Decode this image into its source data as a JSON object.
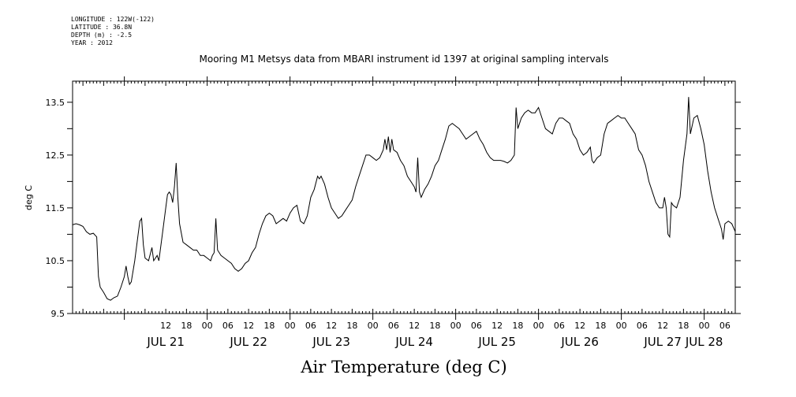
{
  "header": {
    "meta_lines": [
      "LONGITUDE : 122W(-122)",
      "LATITUDE : 36.8N",
      "DEPTH (m) : -2.5",
      "YEAR : 2012"
    ]
  },
  "chart_data": {
    "type": "line",
    "title": "Mooring M1 Metsys data from MBARI instrument id 1397 at original sampling intervals",
    "xlabel": "Air Temperature (deg C)",
    "ylabel": "deg C",
    "ylim": [
      9.5,
      13.9
    ],
    "yticks": [
      9.5,
      10.5,
      11.5,
      12.5,
      13.5
    ],
    "y_tick_labels": [
      "9.5",
      "10.5",
      "11.5",
      "12.5",
      "13.5"
    ],
    "x_unit": "hours since JUL 21 00:00 (2012)",
    "xlim": [
      -15,
      177
    ],
    "hour_tick_labels": [
      {
        "h": 12,
        "t": "12"
      },
      {
        "h": 18,
        "t": "18"
      },
      {
        "h": 24,
        "t": "00"
      },
      {
        "h": 30,
        "t": "06"
      },
      {
        "h": 36,
        "t": "12"
      },
      {
        "h": 42,
        "t": "18"
      },
      {
        "h": 48,
        "t": "00"
      },
      {
        "h": 54,
        "t": "06"
      },
      {
        "h": 60,
        "t": "12"
      },
      {
        "h": 66,
        "t": "18"
      },
      {
        "h": 72,
        "t": "00"
      },
      {
        "h": 78,
        "t": "06"
      },
      {
        "h": 84,
        "t": "12"
      },
      {
        "h": 90,
        "t": "18"
      },
      {
        "h": 96,
        "t": "00"
      },
      {
        "h": 102,
        "t": "06"
      },
      {
        "h": 108,
        "t": "12"
      },
      {
        "h": 114,
        "t": "18"
      },
      {
        "h": 120,
        "t": "00"
      },
      {
        "h": 126,
        "t": "06"
      },
      {
        "h": 132,
        "t": "12"
      },
      {
        "h": 138,
        "t": "18"
      },
      {
        "h": 144,
        "t": "00"
      },
      {
        "h": 150,
        "t": "06"
      },
      {
        "h": 156,
        "t": "12"
      },
      {
        "h": 162,
        "t": "18"
      },
      {
        "h": 168,
        "t": "00"
      },
      {
        "h": 174,
        "t": "06"
      }
    ],
    "day_labels": [
      {
        "h": 12,
        "t": "JUL 21"
      },
      {
        "h": 36,
        "t": "JUL 22"
      },
      {
        "h": 60,
        "t": "JUL 23"
      },
      {
        "h": 84,
        "t": "JUL 24"
      },
      {
        "h": 108,
        "t": "JUL 25"
      },
      {
        "h": 132,
        "t": "JUL 26"
      },
      {
        "h": 156,
        "t": "JUL 27"
      },
      {
        "h": 168,
        "t": "JUL 28"
      }
    ],
    "series": [
      {
        "line_color": "#000000",
        "points": [
          [
            -15.0,
            11.18
          ],
          [
            -14.0,
            11.2
          ],
          [
            -13.0,
            11.18
          ],
          [
            -12.0,
            11.15
          ],
          [
            -11.0,
            11.05
          ],
          [
            -10.0,
            11.0
          ],
          [
            -9.0,
            11.02
          ],
          [
            -8.0,
            10.95
          ],
          [
            -7.5,
            10.2
          ],
          [
            -7.0,
            10.0
          ],
          [
            -6.0,
            9.9
          ],
          [
            -5.0,
            9.78
          ],
          [
            -4.0,
            9.75
          ],
          [
            -3.0,
            9.8
          ],
          [
            -2.0,
            9.83
          ],
          [
            -1.0,
            10.0
          ],
          [
            0.0,
            10.2
          ],
          [
            0.5,
            10.4
          ],
          [
            1.0,
            10.2
          ],
          [
            1.5,
            10.05
          ],
          [
            2.0,
            10.1
          ],
          [
            3.0,
            10.5
          ],
          [
            4.0,
            11.0
          ],
          [
            4.5,
            11.25
          ],
          [
            5.0,
            11.3
          ],
          [
            5.5,
            10.8
          ],
          [
            6.0,
            10.55
          ],
          [
            7.0,
            10.5
          ],
          [
            8.0,
            10.75
          ],
          [
            8.5,
            10.5
          ],
          [
            9.5,
            10.6
          ],
          [
            10.0,
            10.5
          ],
          [
            11.0,
            11.0
          ],
          [
            12.0,
            11.5
          ],
          [
            12.5,
            11.75
          ],
          [
            13.0,
            11.8
          ],
          [
            13.5,
            11.75
          ],
          [
            14.0,
            11.6
          ],
          [
            14.5,
            11.9
          ],
          [
            15.0,
            12.35
          ],
          [
            15.5,
            11.7
          ],
          [
            16.0,
            11.2
          ],
          [
            17.0,
            10.85
          ],
          [
            18.0,
            10.8
          ],
          [
            19.0,
            10.75
          ],
          [
            20.0,
            10.7
          ],
          [
            21.0,
            10.7
          ],
          [
            22.0,
            10.6
          ],
          [
            23.0,
            10.6
          ],
          [
            24.0,
            10.55
          ],
          [
            25.0,
            10.5
          ],
          [
            25.5,
            10.6
          ],
          [
            26.0,
            10.65
          ],
          [
            26.5,
            11.3
          ],
          [
            27.0,
            10.7
          ],
          [
            28.0,
            10.6
          ],
          [
            29.0,
            10.55
          ],
          [
            30.0,
            10.5
          ],
          [
            31.0,
            10.45
          ],
          [
            32.0,
            10.35
          ],
          [
            33.0,
            10.3
          ],
          [
            34.0,
            10.35
          ],
          [
            35.0,
            10.45
          ],
          [
            36.0,
            10.5
          ],
          [
            37.0,
            10.65
          ],
          [
            38.0,
            10.75
          ],
          [
            39.0,
            11.0
          ],
          [
            40.0,
            11.2
          ],
          [
            41.0,
            11.35
          ],
          [
            42.0,
            11.4
          ],
          [
            43.0,
            11.35
          ],
          [
            44.0,
            11.2
          ],
          [
            45.0,
            11.25
          ],
          [
            46.0,
            11.3
          ],
          [
            47.0,
            11.25
          ],
          [
            48.0,
            11.4
          ],
          [
            49.0,
            11.5
          ],
          [
            50.0,
            11.55
          ],
          [
            51.0,
            11.25
          ],
          [
            52.0,
            11.2
          ],
          [
            53.0,
            11.35
          ],
          [
            54.0,
            11.7
          ],
          [
            55.0,
            11.85
          ],
          [
            56.0,
            12.1
          ],
          [
            56.5,
            12.05
          ],
          [
            57.0,
            12.1
          ],
          [
            58.0,
            11.95
          ],
          [
            59.0,
            11.7
          ],
          [
            60.0,
            11.5
          ],
          [
            61.0,
            11.4
          ],
          [
            62.0,
            11.3
          ],
          [
            63.0,
            11.35
          ],
          [
            64.0,
            11.45
          ],
          [
            65.0,
            11.55
          ],
          [
            66.0,
            11.65
          ],
          [
            67.0,
            11.9
          ],
          [
            68.0,
            12.1
          ],
          [
            69.0,
            12.3
          ],
          [
            70.0,
            12.5
          ],
          [
            71.0,
            12.5
          ],
          [
            72.0,
            12.45
          ],
          [
            73.0,
            12.4
          ],
          [
            74.0,
            12.45
          ],
          [
            75.0,
            12.6
          ],
          [
            75.5,
            12.8
          ],
          [
            76.0,
            12.6
          ],
          [
            76.5,
            12.85
          ],
          [
            77.0,
            12.55
          ],
          [
            77.5,
            12.8
          ],
          [
            78.0,
            12.6
          ],
          [
            79.0,
            12.55
          ],
          [
            80.0,
            12.4
          ],
          [
            81.0,
            12.3
          ],
          [
            82.0,
            12.1
          ],
          [
            83.0,
            12.0
          ],
          [
            84.0,
            11.9
          ],
          [
            84.5,
            11.8
          ],
          [
            85.0,
            12.45
          ],
          [
            85.5,
            11.8
          ],
          [
            86.0,
            11.7
          ],
          [
            87.0,
            11.85
          ],
          [
            88.0,
            11.95
          ],
          [
            89.0,
            12.1
          ],
          [
            90.0,
            12.3
          ],
          [
            91.0,
            12.4
          ],
          [
            92.0,
            12.6
          ],
          [
            93.0,
            12.8
          ],
          [
            94.0,
            13.05
          ],
          [
            95.0,
            13.1
          ],
          [
            96.0,
            13.05
          ],
          [
            97.0,
            13.0
          ],
          [
            98.0,
            12.9
          ],
          [
            99.0,
            12.8
          ],
          [
            100.0,
            12.85
          ],
          [
            101.0,
            12.9
          ],
          [
            102.0,
            12.95
          ],
          [
            103.0,
            12.8
          ],
          [
            104.0,
            12.7
          ],
          [
            105.0,
            12.55
          ],
          [
            106.0,
            12.45
          ],
          [
            107.0,
            12.4
          ],
          [
            108.0,
            12.4
          ],
          [
            109.0,
            12.4
          ],
          [
            110.0,
            12.38
          ],
          [
            111.0,
            12.35
          ],
          [
            112.0,
            12.4
          ],
          [
            113.0,
            12.5
          ],
          [
            113.5,
            13.4
          ],
          [
            114.0,
            13.0
          ],
          [
            115.0,
            13.2
          ],
          [
            116.0,
            13.3
          ],
          [
            117.0,
            13.35
          ],
          [
            118.0,
            13.3
          ],
          [
            119.0,
            13.3
          ],
          [
            120.0,
            13.4
          ],
          [
            121.0,
            13.2
          ],
          [
            122.0,
            13.0
          ],
          [
            123.0,
            12.95
          ],
          [
            124.0,
            12.9
          ],
          [
            125.0,
            13.1
          ],
          [
            126.0,
            13.2
          ],
          [
            127.0,
            13.2
          ],
          [
            128.0,
            13.15
          ],
          [
            129.0,
            13.1
          ],
          [
            130.0,
            12.9
          ],
          [
            131.0,
            12.8
          ],
          [
            132.0,
            12.6
          ],
          [
            133.0,
            12.5
          ],
          [
            134.0,
            12.55
          ],
          [
            135.0,
            12.65
          ],
          [
            135.5,
            12.4
          ],
          [
            136.0,
            12.35
          ],
          [
            137.0,
            12.45
          ],
          [
            138.0,
            12.5
          ],
          [
            139.0,
            12.9
          ],
          [
            140.0,
            13.1
          ],
          [
            141.0,
            13.15
          ],
          [
            142.0,
            13.2
          ],
          [
            143.0,
            13.25
          ],
          [
            144.0,
            13.2
          ],
          [
            145.0,
            13.2
          ],
          [
            146.0,
            13.1
          ],
          [
            147.0,
            13.0
          ],
          [
            148.0,
            12.9
          ],
          [
            149.0,
            12.6
          ],
          [
            150.0,
            12.5
          ],
          [
            151.0,
            12.3
          ],
          [
            152.0,
            12.0
          ],
          [
            153.0,
            11.8
          ],
          [
            154.0,
            11.6
          ],
          [
            155.0,
            11.5
          ],
          [
            156.0,
            11.5
          ],
          [
            156.5,
            11.7
          ],
          [
            157.0,
            11.5
          ],
          [
            157.5,
            11.0
          ],
          [
            158.0,
            10.95
          ],
          [
            158.5,
            11.6
          ],
          [
            159.0,
            11.55
          ],
          [
            160.0,
            11.5
          ],
          [
            161.0,
            11.7
          ],
          [
            162.0,
            12.4
          ],
          [
            163.0,
            12.9
          ],
          [
            163.5,
            13.6
          ],
          [
            164.0,
            12.9
          ],
          [
            165.0,
            13.2
          ],
          [
            166.0,
            13.25
          ],
          [
            167.0,
            13.0
          ],
          [
            168.0,
            12.7
          ],
          [
            169.0,
            12.2
          ],
          [
            170.0,
            11.8
          ],
          [
            171.0,
            11.5
          ],
          [
            172.0,
            11.3
          ],
          [
            173.0,
            11.1
          ],
          [
            173.5,
            10.9
          ],
          [
            174.0,
            11.2
          ],
          [
            175.0,
            11.25
          ],
          [
            176.0,
            11.2
          ],
          [
            177.0,
            11.05
          ]
        ]
      }
    ]
  }
}
